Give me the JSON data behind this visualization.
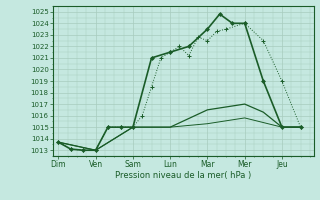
{
  "background_color": "#c5e8e0",
  "grid_color": "#a8ccbe",
  "line_color": "#1a5c28",
  "x_labels": [
    "Dim",
    "Ven",
    "Sam",
    "Lun",
    "Mar",
    "Mer",
    "Jeu"
  ],
  "x_ticks": [
    0,
    1,
    2,
    3,
    4,
    5,
    6
  ],
  "xlim": [
    -0.15,
    6.85
  ],
  "ylim": [
    1012.5,
    1025.5
  ],
  "yticks": [
    1013,
    1014,
    1015,
    1016,
    1017,
    1018,
    1019,
    1020,
    1021,
    1022,
    1023,
    1024,
    1025
  ],
  "xlabel": "Pression niveau de la mer( hPa )",
  "series1_x": [
    0.0,
    0.33,
    0.67,
    1.0,
    1.33,
    1.67,
    2.0,
    2.25,
    2.5,
    2.75,
    3.0,
    3.25,
    3.5,
    3.75,
    4.0,
    4.25,
    4.5,
    5.0,
    5.5,
    6.0,
    6.5
  ],
  "series1_y": [
    1013.7,
    1013.1,
    1013.0,
    1013.0,
    1015.0,
    1015.0,
    1015.0,
    1016.0,
    1018.5,
    1021.0,
    1021.5,
    1022.0,
    1021.2,
    1022.8,
    1022.5,
    1023.3,
    1023.5,
    1024.0,
    1022.5,
    1019.0,
    1015.0
  ],
  "series2_x": [
    0.0,
    0.33,
    0.67,
    1.0,
    1.33,
    1.67,
    2.0,
    2.5,
    3.0,
    3.5,
    4.0,
    4.33,
    4.67,
    5.0,
    5.5,
    6.0,
    6.5
  ],
  "series2_y": [
    1013.7,
    1013.1,
    1013.0,
    1013.0,
    1015.0,
    1015.0,
    1015.0,
    1021.0,
    1021.5,
    1022.0,
    1023.5,
    1024.8,
    1024.0,
    1024.0,
    1019.0,
    1015.0,
    1015.0
  ],
  "series3_x": [
    0.0,
    1.0,
    2.0,
    3.0,
    4.0,
    5.0,
    5.5,
    6.0,
    6.5
  ],
  "series3_y": [
    1013.7,
    1013.0,
    1015.0,
    1015.0,
    1016.5,
    1017.0,
    1016.3,
    1015.0,
    1015.0
  ],
  "series4_x": [
    0.0,
    1.0,
    2.0,
    3.0,
    4.0,
    5.0,
    6.0,
    6.5
  ],
  "series4_y": [
    1013.7,
    1013.0,
    1015.0,
    1015.0,
    1015.3,
    1015.8,
    1015.0,
    1015.0
  ]
}
